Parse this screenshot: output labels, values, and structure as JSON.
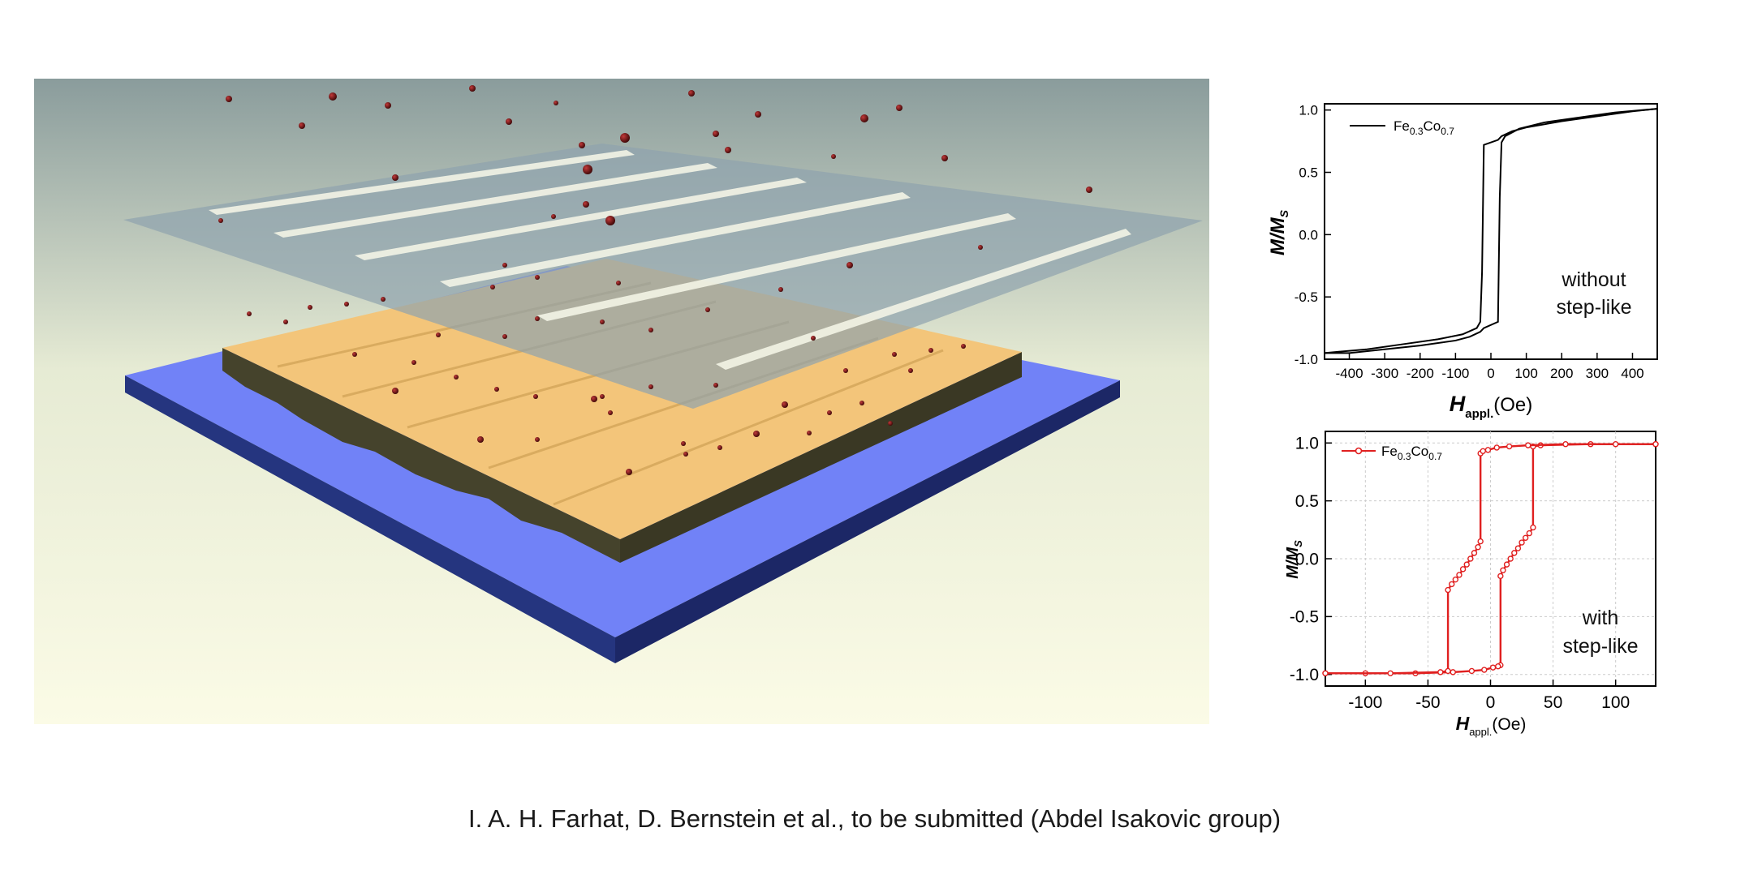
{
  "caption": "I. A. H. Farhat, D. Bernstein et al., to be submitted (Abdel Isakovic group)",
  "colors": {
    "substrate_top": "#7182f7",
    "substrate_side": "#1f2c78",
    "film_top": "#f3c57a",
    "film_side": "#45432c",
    "mask": "#9aaab0",
    "particle": "#6b1414",
    "curve_top": "#000000",
    "curve_bottom": "#e02020"
  },
  "chart_data": [
    {
      "type": "line",
      "legend": {
        "base": "Fe",
        "sub1": "0.3",
        "mid": "Co",
        "sub2": "0.7",
        "placement": "top-left"
      },
      "ylabel": {
        "main": "M/M",
        "sub": "S"
      },
      "xlabel": {
        "main": "H",
        "sub": "appl.",
        "unit": "(Oe)"
      },
      "annotation": [
        "without",
        "step-like"
      ],
      "xlim": [
        -470,
        470
      ],
      "ylim": [
        -1.0,
        1.05
      ],
      "xticks": [
        "-400",
        "-300",
        "-200",
        "-100",
        "0",
        "100",
        "200",
        "300",
        "400"
      ],
      "xtick_values": [
        -400,
        -300,
        -200,
        -100,
        0,
        100,
        200,
        300,
        400
      ],
      "yticks": [
        "1.0",
        "0.5",
        "0.0",
        "-0.5",
        "-1.0"
      ],
      "ytick_values": [
        1.0,
        0.5,
        0.0,
        -0.5,
        -1.0
      ],
      "grid": false,
      "series": [
        {
          "name": "Fe0.3Co0.7",
          "x": [
            -470,
            -350,
            -250,
            -150,
            -80,
            -40,
            -30,
            -25,
            -20,
            20,
            30,
            60,
            100,
            200,
            300,
            400,
            470
          ],
          "y": [
            -0.95,
            -0.92,
            -0.88,
            -0.84,
            -0.8,
            -0.75,
            -0.7,
            -0.3,
            0.72,
            0.76,
            0.79,
            0.83,
            0.86,
            0.91,
            0.95,
            0.99,
            1.01
          ]
        },
        {
          "name": "Fe0.3Co0.7",
          "x": [
            470,
            350,
            250,
            150,
            80,
            40,
            30,
            25,
            20,
            -20,
            -30,
            -60,
            -100,
            -200,
            -300,
            -400,
            -470
          ],
          "y": [
            1.01,
            0.98,
            0.94,
            0.9,
            0.85,
            0.79,
            0.74,
            0.3,
            -0.7,
            -0.75,
            -0.78,
            -0.82,
            -0.85,
            -0.89,
            -0.92,
            -0.95,
            -0.95
          ]
        }
      ]
    },
    {
      "type": "line",
      "legend": {
        "base": "Fe",
        "sub1": "0.3",
        "mid": "Co",
        "sub2": "0.7",
        "placement": "top-left"
      },
      "ylabel": {
        "main": "M/M",
        "sub": "S"
      },
      "xlabel": {
        "main": "H",
        "sub": "appl.",
        "unit": "(Oe)"
      },
      "annotation": [
        "with",
        "step-like"
      ],
      "xlim": [
        -132,
        132
      ],
      "ylim": [
        -1.1,
        1.1
      ],
      "xticks": [
        "-100",
        "-50",
        "0",
        "50",
        "100"
      ],
      "xtick_values": [
        -100,
        -50,
        0,
        50,
        100
      ],
      "yticks": [
        "1.0",
        "0.5",
        "0.0",
        "-0.5",
        "-1.0"
      ],
      "ytick_values": [
        1.0,
        0.5,
        0.0,
        -0.5,
        -1.0
      ],
      "grid": true,
      "series": [
        {
          "name": "Fe0.3Co0.7",
          "x": [
            132,
            80,
            40,
            34,
            34,
            31,
            28,
            25,
            22,
            19,
            16,
            13,
            10,
            8,
            8,
            6,
            2,
            -5,
            -15,
            -30,
            -60,
            -100,
            -132
          ],
          "y": [
            0.99,
            0.99,
            0.98,
            0.97,
            0.27,
            0.22,
            0.18,
            0.14,
            0.09,
            0.05,
            0.0,
            -0.05,
            -0.1,
            -0.15,
            -0.92,
            -0.93,
            -0.94,
            -0.96,
            -0.97,
            -0.98,
            -0.99,
            -0.99,
            -0.99
          ]
        },
        {
          "name": "Fe0.3Co0.7",
          "x": [
            -132,
            -80,
            -40,
            -34,
            -34,
            -31,
            -28,
            -25,
            -22,
            -19,
            -16,
            -13,
            -10,
            -8,
            -8,
            -6,
            -2,
            5,
            15,
            30,
            60,
            100,
            132
          ],
          "y": [
            -0.99,
            -0.99,
            -0.98,
            -0.97,
            -0.27,
            -0.22,
            -0.18,
            -0.14,
            -0.09,
            -0.05,
            0.0,
            0.05,
            0.1,
            0.15,
            0.91,
            0.93,
            0.94,
            0.96,
            0.97,
            0.98,
            0.99,
            0.99,
            0.99
          ]
        }
      ]
    }
  ]
}
